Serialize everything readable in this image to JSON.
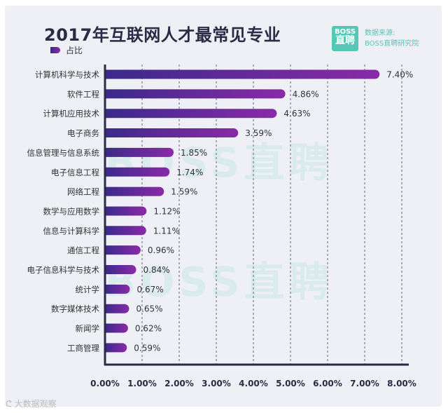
{
  "header": {
    "title": "2017年互联网人才最常见专业",
    "legend_label": "占比",
    "brand_logo_line1": "BOSS",
    "brand_logo_line2": "直聘",
    "source_label": "数据来源:",
    "source_name": "BOSS直聘研究院"
  },
  "watermark": "BOSS直聘",
  "credit": "大数据观察",
  "colors": {
    "bar_start": "#3b2a8a",
    "bar_end": "#8a2aa8",
    "brand": "#56c6b5",
    "axis": "#2b2b45"
  },
  "chart_data": {
    "type": "bar",
    "orientation": "horizontal",
    "title": "2017年互联网人才最常见专业",
    "series": [
      {
        "name": "占比"
      }
    ],
    "categories": [
      "计算机科学与技术",
      "软件工程",
      "计算机应用技术",
      "电子商务",
      "信息管理与信息系统",
      "电子信息工程",
      "网络工程",
      "数学与应用数学",
      "信息与计算科学",
      "通信工程",
      "电子信息科学与技术",
      "统计学",
      "数字媒体技术",
      "新闻学",
      "工商管理"
    ],
    "values": [
      7.4,
      4.86,
      4.63,
      3.59,
      1.85,
      1.74,
      1.59,
      1.12,
      1.11,
      0.96,
      0.84,
      0.67,
      0.65,
      0.62,
      0.59
    ],
    "value_labels": [
      "7.40%",
      "4.86%",
      "4.63%",
      "3.59%",
      "1.85%",
      "1.74%",
      "1.59%",
      "1.12%",
      "1.11%",
      "0.96%",
      "0.84%",
      "0.67%",
      "0.65%",
      "0.62%",
      "0.59%"
    ],
    "xlim": [
      0,
      8
    ],
    "xticks": [
      "0.00%",
      "1.00%",
      "2.00%",
      "3.00%",
      "4.00%",
      "5.00%",
      "6.00%",
      "7.00%",
      "8.00%"
    ],
    "grid": "vertical dashed",
    "legend_position": "top-left"
  }
}
